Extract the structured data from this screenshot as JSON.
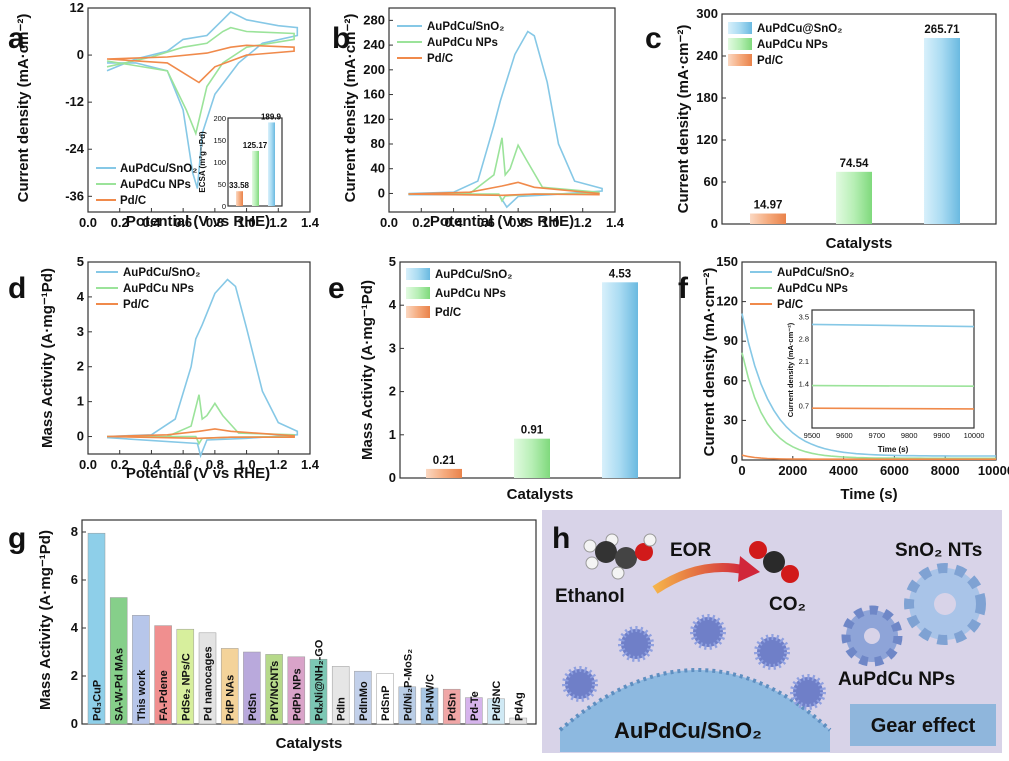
{
  "colors": {
    "snO2": "#86c8e6",
    "nps": "#9be39a",
    "pdc": "#f08a4b",
    "bgH": "#d6d2e6"
  },
  "panel_labels": {
    "a": "a",
    "b": "b",
    "c": "c",
    "d": "d",
    "e": "e",
    "f": "f",
    "g": "g",
    "h": "h"
  },
  "chart_data": [
    {
      "panel": "a",
      "type": "line",
      "xlabel": "Potential (V vs RHE)",
      "ylabel": "Current density (mA·cm⁻²)",
      "xlim": [
        0,
        1.4
      ],
      "ylim": [
        -40,
        12
      ],
      "xticks": [
        "0.0",
        "0.2",
        "0.4",
        "0.6",
        "0.8",
        "1.0",
        "1.2",
        "1.4"
      ],
      "yticks": [
        "12",
        "0",
        "-12",
        "-24",
        "-36"
      ],
      "legend": [
        "AuPdCu/SnO₂",
        "AuPdCu NPs",
        "Pd/C"
      ],
      "inset": {
        "ylabel": "ECSA (m²g⁻¹Pd)",
        "yticks": [
          "0",
          "50",
          "100",
          "150",
          "200"
        ],
        "values": [
          33.58,
          125.17,
          189.9
        ],
        "labels": [
          "33.58",
          "125.17",
          "189.9"
        ]
      }
    },
    {
      "panel": "b",
      "type": "line",
      "xlabel": "Potential (V vs RHE)",
      "ylabel": "Current density (mA·cm⁻²)",
      "xlim": [
        0,
        1.4
      ],
      "ylim": [
        -30,
        300
      ],
      "xticks": [
        "0.0",
        "0.2",
        "0.4",
        "0.6",
        "0.8",
        "1.0",
        "1.2",
        "1.4"
      ],
      "yticks": [
        "0",
        "40",
        "80",
        "120",
        "160",
        "200",
        "240",
        "280"
      ],
      "legend": [
        "AuPdCu/SnO₂",
        "AuPdCu NPs",
        "Pd/C"
      ]
    },
    {
      "panel": "c",
      "type": "bar",
      "xlabel": "Catalysts",
      "ylabel": "Current density (mA·cm⁻²)",
      "ylim": [
        0,
        300
      ],
      "yticks": [
        "0",
        "60",
        "120",
        "180",
        "240",
        "300"
      ],
      "legend": [
        "AuPdCu@SnO₂",
        "AuPdCu NPs",
        "Pd/C"
      ],
      "values": [
        14.97,
        74.54,
        265.71
      ],
      "labels": [
        "14.97",
        "74.54",
        "265.71"
      ]
    },
    {
      "panel": "d",
      "type": "line",
      "xlabel": "Potential (V vs RHE)",
      "ylabel": "Mass Activity (A·mg⁻¹Pd)",
      "xlim": [
        0,
        1.4
      ],
      "ylim": [
        -0.5,
        5
      ],
      "xticks": [
        "0.0",
        "0.2",
        "0.4",
        "0.6",
        "0.8",
        "1.0",
        "1.2",
        "1.4"
      ],
      "yticks": [
        "0",
        "1",
        "2",
        "3",
        "4",
        "5"
      ],
      "legend": [
        "AuPdCu/SnO₂",
        "AuPdCu NPs",
        "Pd/C"
      ]
    },
    {
      "panel": "e",
      "type": "bar",
      "xlabel": "Catalysts",
      "ylabel": "Mass Activity (A·mg⁻¹Pd)",
      "ylim": [
        0,
        5
      ],
      "yticks": [
        "0",
        "1",
        "2",
        "3",
        "4",
        "5"
      ],
      "legend": [
        "AuPdCu/SnO₂",
        "AuPdCu NPs",
        "Pd/C"
      ],
      "values": [
        0.21,
        0.91,
        4.53
      ],
      "labels": [
        "0.21",
        "0.91",
        "4.53"
      ]
    },
    {
      "panel": "f",
      "type": "line",
      "xlabel": "Time (s)",
      "ylabel": "Current density (mA·cm⁻²)",
      "xlim": [
        0,
        10000
      ],
      "ylim": [
        0,
        150
      ],
      "xticks": [
        "0",
        "2000",
        "4000",
        "6000",
        "8000",
        "10000"
      ],
      "yticks": [
        "0",
        "30",
        "60",
        "90",
        "120",
        "150"
      ],
      "legend": [
        "AuPdCu/SnO₂",
        "AuPdCu NPs",
        "Pd/C"
      ],
      "inset": {
        "xlabel": "Time (s)",
        "ylabel": "Current density (mA·cm⁻²)",
        "xticks": [
          "9500",
          "9600",
          "9700",
          "9800",
          "9900",
          "10000"
        ],
        "yticks": [
          "0.7",
          "1.4",
          "2.1",
          "2.8",
          "3.5"
        ]
      }
    },
    {
      "panel": "g",
      "type": "bar",
      "xlabel": "Catalysts",
      "ylabel": "Mass Activity (A·mg⁻¹Pd)",
      "ylim": [
        0,
        8.5
      ],
      "yticks": [
        "0",
        "2",
        "4",
        "6",
        "8"
      ],
      "categories": [
        "Pd₃CuP",
        "SA-W-Pd MAs",
        "This work",
        "FA-Pdene",
        "PdSe₂ NPs/C",
        "Pd nanocages",
        "PdP NAs",
        "PdSn",
        "PdY/NCNTs",
        "PdPb NPs",
        "PdₓNi@NH₂-GO",
        "PdIn",
        "PdInMo",
        "PdSnP",
        "Pd/Ni₂P-MoS₂",
        "Pd-NW/C",
        "PdSn",
        "Pd-Te",
        "Pd/SNC",
        "PdAg"
      ],
      "values": [
        7.95,
        5.27,
        4.53,
        4.1,
        3.95,
        3.8,
        3.15,
        3.0,
        2.9,
        2.8,
        2.7,
        2.4,
        2.2,
        2.1,
        1.55,
        1.5,
        1.45,
        1.1,
        1.05,
        0.25
      ]
    }
  ],
  "schematic": {
    "ethanol": "Ethanol",
    "eor": "EOR",
    "co2": "CO₂",
    "sno2_nts": "SnO₂ NTs",
    "nps": "AuPdCu NPs",
    "main": "AuPdCu/SnO₂",
    "gear_effect": "Gear effect"
  }
}
